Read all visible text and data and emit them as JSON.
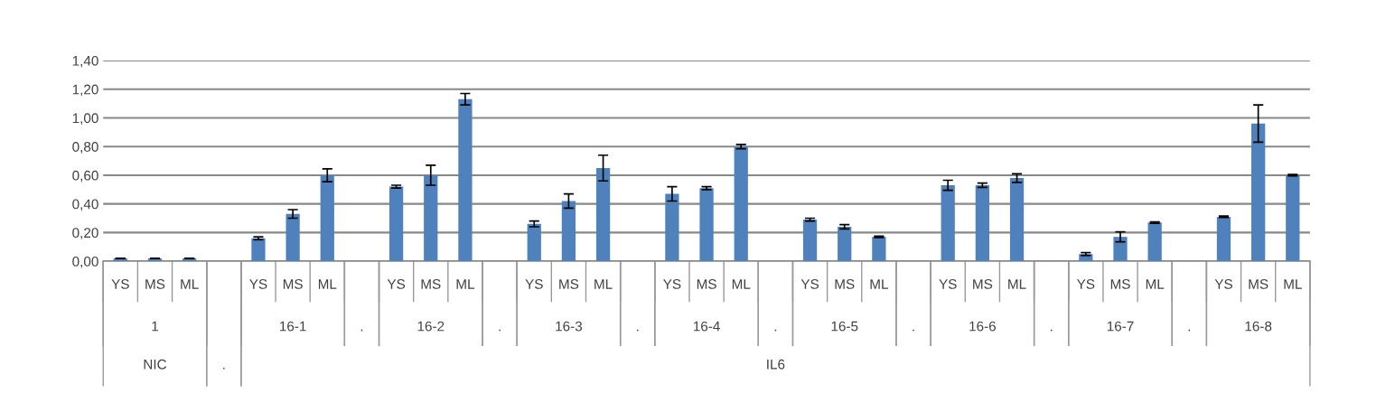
{
  "chart_data": {
    "type": "bar",
    "categories": [
      "YS",
      "MS",
      "ML",
      null,
      "YS",
      "MS",
      "ML",
      null,
      "YS",
      "MS",
      "ML",
      null,
      "YS",
      "MS",
      "ML",
      null,
      "YS",
      "MS",
      "ML",
      null,
      "YS",
      "MS",
      "ML",
      null,
      "YS",
      "MS",
      "ML",
      null,
      "YS",
      "MS",
      "ML",
      null,
      "YS",
      "MS",
      "ML"
    ],
    "values": [
      0.02,
      0.02,
      0.02,
      null,
      0.16,
      0.33,
      0.6,
      null,
      0.52,
      0.6,
      1.13,
      null,
      0.26,
      0.42,
      0.65,
      null,
      0.47,
      0.51,
      0.8,
      null,
      0.29,
      0.24,
      0.17,
      null,
      0.53,
      0.53,
      0.58,
      null,
      0.05,
      0.17,
      0.27,
      null,
      0.31,
      0.96,
      0.6
    ],
    "errors": [
      null,
      null,
      null,
      null,
      0.01,
      0.03,
      0.045,
      null,
      0.01,
      0.07,
      0.04,
      null,
      0.02,
      0.05,
      0.09,
      null,
      0.05,
      0.01,
      0.015,
      null,
      0.01,
      0.015,
      0.005,
      null,
      0.035,
      0.015,
      0.03,
      null,
      0.01,
      0.035,
      0.005,
      null,
      0.005,
      0.13,
      0.005
    ],
    "color": "#4f81bd",
    "ylim": [
      0,
      1.4
    ],
    "yticks": [
      {
        "value": 0,
        "label": "0,00"
      },
      {
        "value": 0.2,
        "label": "0,20"
      },
      {
        "value": 0.4,
        "label": "0,40"
      },
      {
        "value": 0.6,
        "label": "0,60"
      },
      {
        "value": 0.8,
        "label": "0,80"
      },
      {
        "value": 1.0,
        "label": "1,00"
      },
      {
        "value": 1.2,
        "label": "1,20"
      },
      {
        "value": 1.4,
        "label": "1,40"
      }
    ],
    "grid": "y",
    "annotations": [
      "1",
      "16-1",
      ".",
      "16-2",
      ".",
      "16-3",
      ".",
      "16-4",
      ".",
      "16-5",
      ".",
      "16-6",
      ".",
      "16-7",
      ".",
      "16-8",
      "NIC",
      ".",
      "IL6"
    ]
  }
}
